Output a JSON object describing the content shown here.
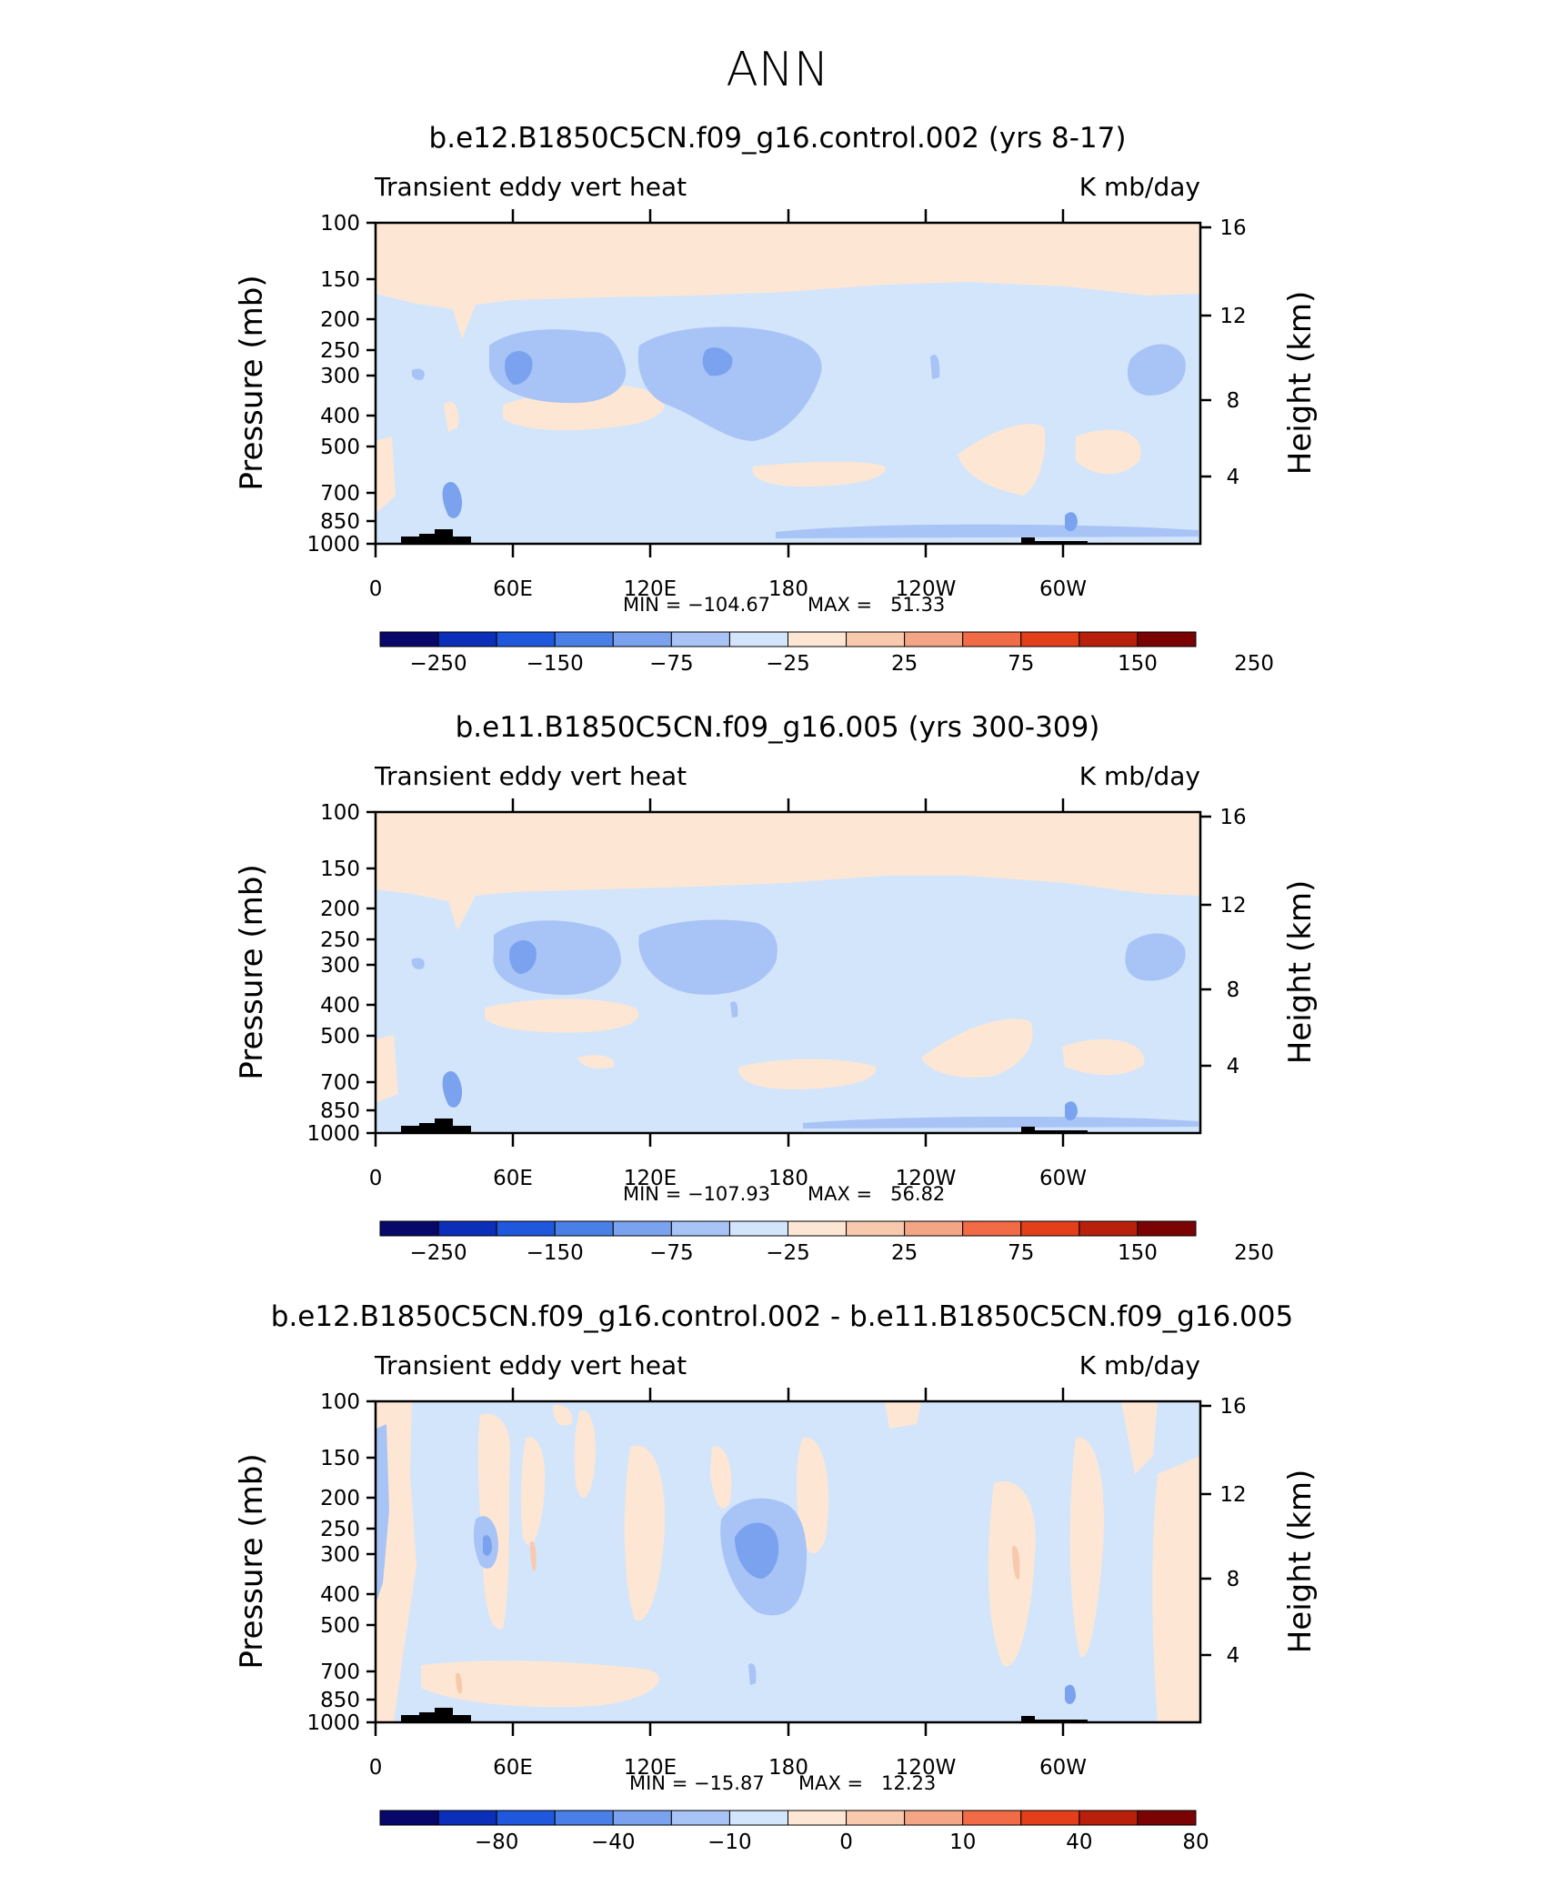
{
  "title": "ANN",
  "colors": {
    "palette": [
      "#08086b",
      "#0b2fb8",
      "#1f58dd",
      "#4a7fe8",
      "#7aa2ef",
      "#a8c3f5",
      "#d3e5fb",
      "#fde7d4",
      "#f9c9ae",
      "#f4a585",
      "#f06b46",
      "#e23f1a",
      "#b8200c",
      "#7a0404"
    ],
    "land": "#000000"
  },
  "chart_data": [
    {
      "type": "heatmap",
      "title": "b.e12.B1850C5CN.f09_g16.control.002 (yrs 8-17)",
      "left_label": "Transient eddy vert heat",
      "right_label": "K mb/day",
      "ylabel": "Pressure (mb)",
      "y2label": "Height (km)",
      "xticks": [
        "0",
        "60E",
        "120E",
        "180",
        "120W",
        "60W"
      ],
      "yticks": [
        "100",
        "150",
        "200",
        "250",
        "300",
        "400",
        "500",
        "700",
        "850",
        "1000"
      ],
      "y2ticks": [
        "16",
        "12",
        "8",
        "4"
      ],
      "min_label": "MIN = −104.67",
      "max_label": "MAX =   51.33",
      "colorbar_labels": [
        "−250",
        "−150",
        "−75",
        "−25",
        "25",
        "75",
        "150",
        "250"
      ],
      "min": -104.67,
      "max": 51.33
    },
    {
      "type": "heatmap",
      "title": "b.e11.B1850C5CN.f09_g16.005 (yrs 300-309)",
      "left_label": "Transient eddy vert heat",
      "right_label": "K mb/day",
      "ylabel": "Pressure (mb)",
      "y2label": "Height (km)",
      "xticks": [
        "0",
        "60E",
        "120E",
        "180",
        "120W",
        "60W"
      ],
      "yticks": [
        "100",
        "150",
        "200",
        "250",
        "300",
        "400",
        "500",
        "700",
        "850",
        "1000"
      ],
      "y2ticks": [
        "16",
        "12",
        "8",
        "4"
      ],
      "min_label": "MIN = −107.93",
      "max_label": "MAX =   56.82",
      "colorbar_labels": [
        "−250",
        "−150",
        "−75",
        "−25",
        "25",
        "75",
        "150",
        "250"
      ],
      "min": -107.93,
      "max": 56.82
    },
    {
      "type": "heatmap",
      "title": "b.e12.B1850C5CN.f09_g16.control.002 - b.e11.B1850C5CN.f09_g16.005",
      "left_label": "Transient eddy vert heat",
      "right_label": "K mb/day",
      "ylabel": "Pressure (mb)",
      "y2label": "Height (km)",
      "xticks": [
        "0",
        "60E",
        "120E",
        "180",
        "120W",
        "60W"
      ],
      "yticks": [
        "100",
        "150",
        "200",
        "250",
        "300",
        "400",
        "500",
        "700",
        "850",
        "1000"
      ],
      "y2ticks": [
        "16",
        "12",
        "8",
        "4"
      ],
      "min_label": "MIN = −15.87",
      "max_label": "MAX =   12.23",
      "colorbar_labels": [
        "−80",
        "−40",
        "−10",
        "0",
        "10",
        "40",
        "80"
      ],
      "min": -15.87,
      "max": 12.23
    }
  ]
}
